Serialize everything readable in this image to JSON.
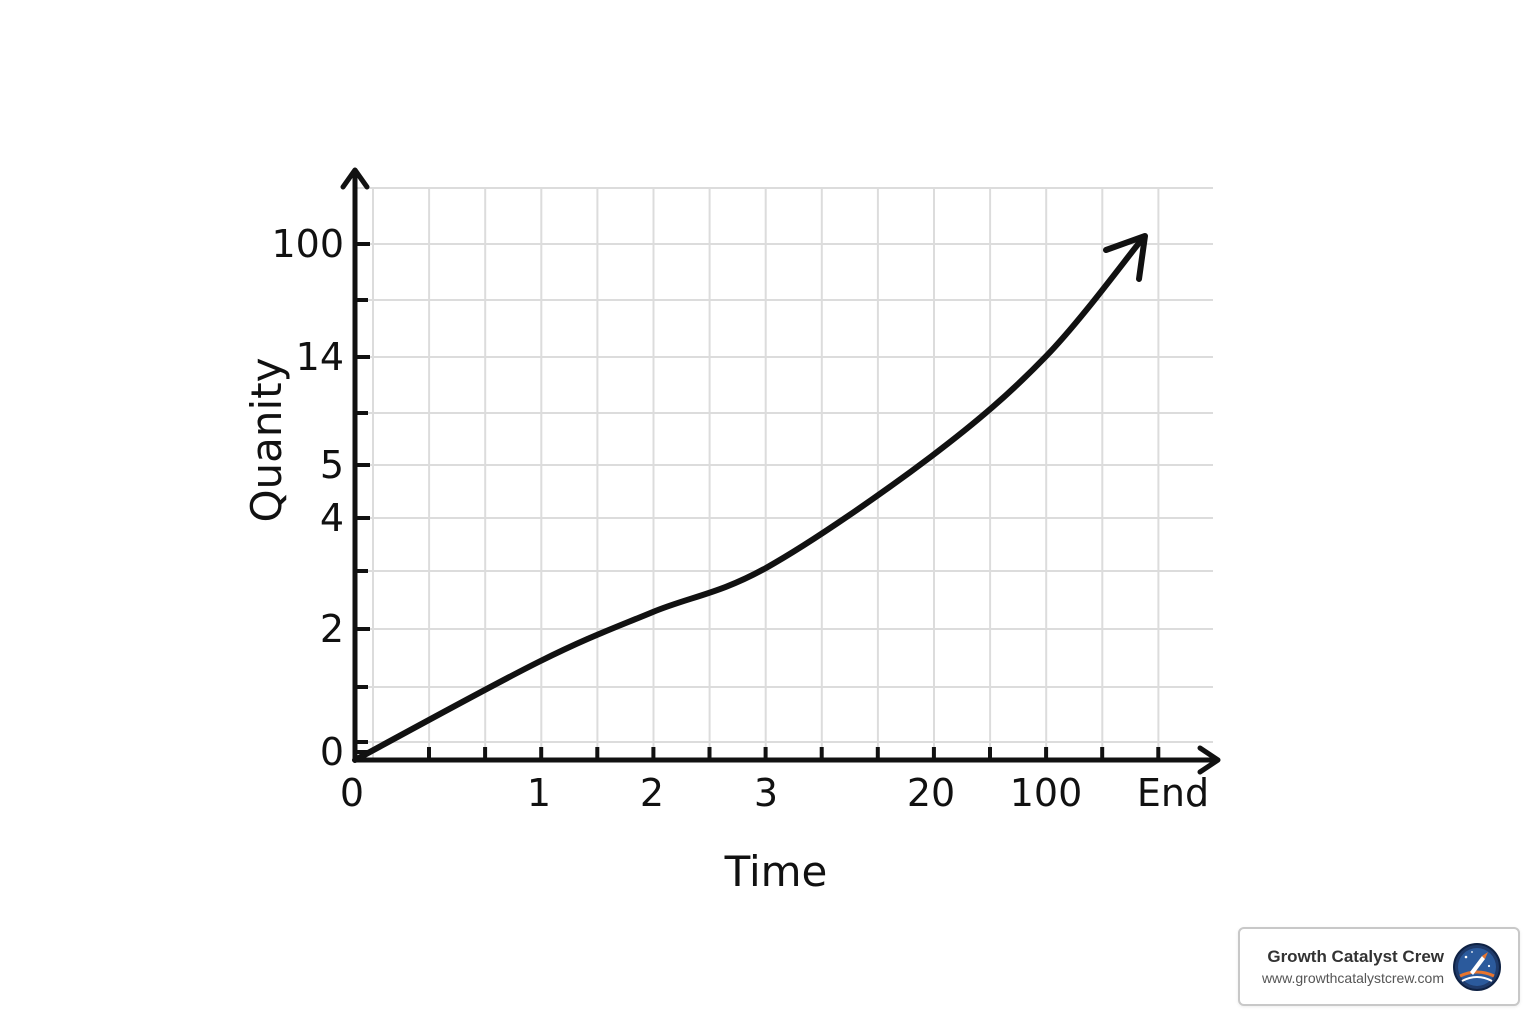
{
  "chart_data": {
    "type": "line",
    "xlabel": "Time",
    "ylabel": "Quanity",
    "x_ticks": [
      "0",
      "1",
      "2",
      "3",
      "20",
      "100",
      "End"
    ],
    "y_ticks": [
      "0",
      "2",
      "4",
      "5",
      "14",
      "100"
    ],
    "series": [
      {
        "x": [
          "0",
          "1",
          "2",
          "3",
          "20",
          "100"
        ],
        "y": [
          0,
          1.5,
          2.3,
          3.1,
          5.7,
          14.5
        ],
        "style": "curve ending in arrowhead"
      }
    ],
    "grid": true,
    "curve_color": "#111111",
    "grid_color": "#dcdcdc"
  },
  "watermark": {
    "name": "Growth Catalyst Crew",
    "url": "www.growthcatalystcrew.com",
    "logo_icon": "rocket-planet-icon"
  }
}
